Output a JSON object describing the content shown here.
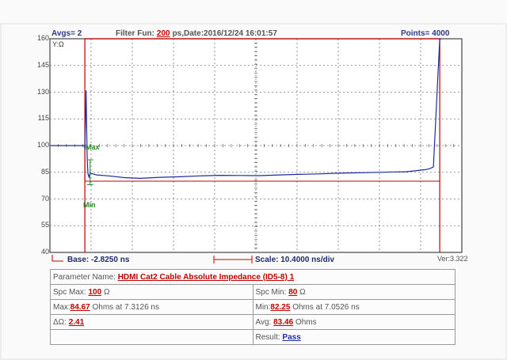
{
  "header": {
    "avgs": "Avgs= 2",
    "filter_label": "Filter Fun:",
    "filter_value": "200",
    "filter_unit_date": "ps,Date:2016/12/24 16:01:57",
    "points": "Points= 4000"
  },
  "chart_data": {
    "type": "line",
    "y_axis_label": "Y:Ω",
    "ylim": [
      40,
      160
    ],
    "yticks": [
      "160",
      "145",
      "130",
      "115",
      "100",
      "85",
      "70",
      "55",
      "40"
    ],
    "xlim_ns": [
      -2.825,
      101.175
    ],
    "x_per_div_ns": 10.4,
    "grid": true,
    "series": [
      {
        "color": "#1e2b9e",
        "x": [
          -2.8,
          5.9,
          6.0,
          6.3,
          6.6,
          6.8,
          7.05,
          7.3,
          9,
          12,
          16,
          20,
          25,
          30,
          35,
          40,
          45,
          50,
          55,
          60,
          65,
          70,
          75,
          80,
          84,
          87,
          90,
          92,
          93,
          94,
          95.6,
          96
        ],
        "y": [
          100,
          100,
          98,
          131,
          92,
          84,
          82.3,
          84.6,
          83.5,
          83,
          82,
          81.6,
          82.2,
          82.5,
          83,
          83.3,
          83.2,
          83.1,
          83.5,
          83.8,
          84.1,
          84.5,
          84.7,
          85,
          85.2,
          85.3,
          86,
          86.5,
          87,
          88,
          160,
          160
        ]
      }
    ],
    "limits": {
      "color": "#c00000",
      "min": 80,
      "max": 100,
      "t_start_ns": 6.0,
      "t_end_ns": 95.6
    },
    "markers": {
      "max_label": "Max",
      "min_label": "Min",
      "color": "#2a8a2a",
      "max_time_ns": 7.3126,
      "min_time_ns": 7.0526
    }
  },
  "bottom": {
    "base": "Base: -2.8250 ns",
    "scale": "Scale: 10.4000 ns/div",
    "version": "Ver:3.322"
  },
  "params": {
    "parameter_label": "Parameter Name:",
    "parameter_value": "HDMI Cat2 Cable Absolute Impedance (ID5-8) 1",
    "spc_max_label": "Spc Max:",
    "spc_max_value": "100",
    "spc_max_unit": "Ω",
    "spc_min_label": "Spc Min:",
    "spc_min_value": "80",
    "spc_min_unit": "Ω",
    "max_label": "Max:",
    "max_value": "84.67",
    "max_rest": "Ohms at 7.3126 ns",
    "min_label": "Min:",
    "min_value": "82.25",
    "min_rest": "Ohms at 7.0526 ns",
    "delta_label": "ΔΩ:",
    "delta_value": "2.41",
    "avg_label": "Avg:",
    "avg_value": "83.46",
    "avg_unit": "Ohms",
    "result_label": "Result:",
    "result_value": "Pass"
  }
}
